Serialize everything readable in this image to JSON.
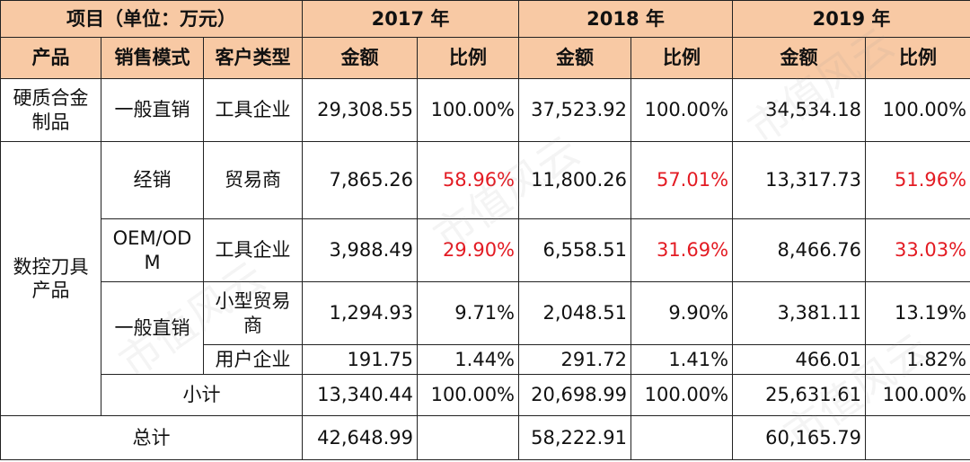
{
  "header": {
    "item_label": "项目（单位：万元）",
    "years": [
      "2017 年",
      "2018 年",
      "2019 年"
    ],
    "product": "产品",
    "sales_mode": "销售模式",
    "customer_type": "客户类型",
    "amount": "金额",
    "ratio": "比例"
  },
  "rows": {
    "hard_alloy": {
      "product": "硬质合金制品",
      "mode": "一般直销",
      "customer": "工具企业",
      "values": [
        [
          "29,308.55",
          "100.00%"
        ],
        [
          "37,523.92",
          "100.00%"
        ],
        [
          "34,534.18",
          "100.00%"
        ]
      ]
    },
    "cnc_product": "数控刀具产品",
    "distribution": {
      "mode": "经销",
      "customer": "贸易商",
      "values": [
        [
          "7,865.26",
          "58.96%"
        ],
        [
          "11,800.26",
          "57.01%"
        ],
        [
          "13,317.73",
          "51.96%"
        ]
      ]
    },
    "oem": {
      "mode": "OEM/ODM",
      "customer": "工具企业",
      "values": [
        [
          "3,988.49",
          "29.90%"
        ],
        [
          "6,558.51",
          "31.69%"
        ],
        [
          "8,466.76",
          "33.03%"
        ]
      ]
    },
    "direct": {
      "mode": "一般直销",
      "small_trader": {
        "customer": "小型贸易商",
        "values": [
          [
            "1,294.93",
            "9.71%"
          ],
          [
            "2,048.51",
            "9.90%"
          ],
          [
            "3,381.11",
            "13.19%"
          ]
        ]
      },
      "user_enterprise": {
        "customer": "用户企业",
        "values": [
          [
            "191.75",
            "1.44%"
          ],
          [
            "291.72",
            "1.41%"
          ],
          [
            "466.01",
            "1.82%"
          ]
        ]
      }
    },
    "subtotal": {
      "label": "小计",
      "values": [
        [
          "13,340.44",
          "100.00%"
        ],
        [
          "20,698.99",
          "100.00%"
        ],
        [
          "25,631.61",
          "100.00%"
        ]
      ]
    },
    "total": {
      "label": "总计",
      "values": [
        "42,648.99",
        "58,222.91",
        "60,165.79"
      ]
    }
  },
  "watermark": "市值风云",
  "colors": {
    "header_bg": "#f8c9a4",
    "highlight_red": "#e31b23",
    "border": "#222222"
  }
}
